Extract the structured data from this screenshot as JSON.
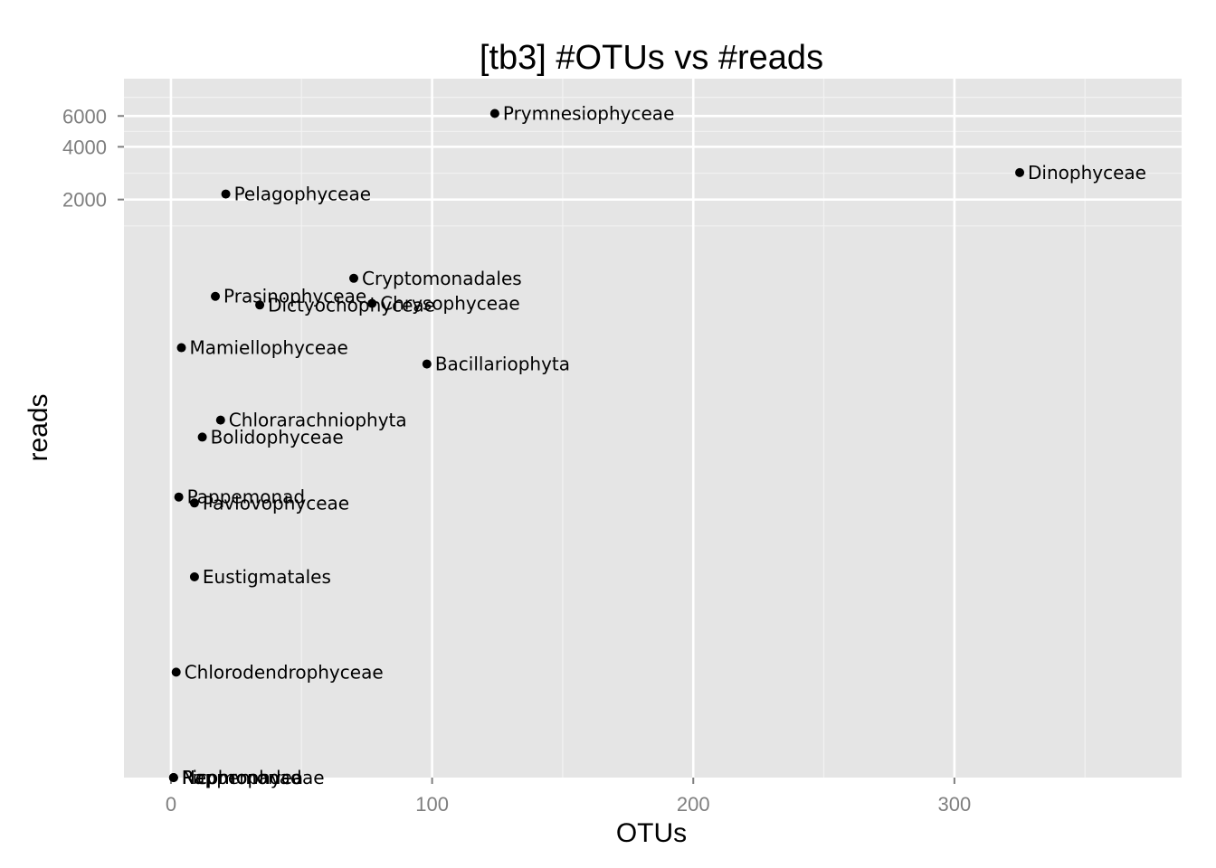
{
  "chart_data": {
    "type": "scatter",
    "title": "[tb3] #OTUs vs #reads",
    "xlabel": "OTUs",
    "ylabel": "reads",
    "xlim": [
      -18,
      387
    ],
    "x_ticks": [
      0,
      100,
      200,
      300
    ],
    "x_tick_labels": [
      "0",
      "100",
      "200",
      "300"
    ],
    "y_scale": "log",
    "ylim": [
      1,
      9800
    ],
    "y_ticks": [
      2000,
      4000,
      6000
    ],
    "y_tick_labels": [
      "2000",
      "4000",
      "6000"
    ],
    "grid": true,
    "legend": "none",
    "point_color": "#000000",
    "panel_color": "#e5e5e5",
    "points": [
      {
        "label": "Prymnesiophyceae",
        "x": 124,
        "y": 6200
      },
      {
        "label": "Dinophyceae",
        "x": 325,
        "y": 2850
      },
      {
        "label": "Pelagophyceae",
        "x": 21,
        "y": 2150
      },
      {
        "label": "Cryptomonadales",
        "x": 70,
        "y": 710
      },
      {
        "label": "Prasinophyceae",
        "x": 17,
        "y": 560
      },
      {
        "label": "Dictyochophyceae",
        "x": 34,
        "y": 500
      },
      {
        "label": "Chrysophyceae",
        "x": 77,
        "y": 510
      },
      {
        "label": "Mamiellophyceae",
        "x": 4,
        "y": 285
      },
      {
        "label": "Bacillariophyta",
        "x": 98,
        "y": 230
      },
      {
        "label": "Chlorarachniophyta",
        "x": 19,
        "y": 110
      },
      {
        "label": "Bolidophyceae",
        "x": 12,
        "y": 88
      },
      {
        "label": "Pappemonad",
        "x": 3,
        "y": 40
      },
      {
        "label": "Pavlovophyceae",
        "x": 9,
        "y": 37
      },
      {
        "label": "Eustigmatales",
        "x": 9,
        "y": 14
      },
      {
        "label": "Chlorodendrophyceae",
        "x": 2,
        "y": 4
      },
      {
        "label": "Rappemonad",
        "x": 1,
        "y": 1
      },
      {
        "label": "Nephrophyceae",
        "x": 1,
        "y": 1
      },
      {
        "label": "Picomonadea",
        "x": 1,
        "y": 1
      }
    ]
  }
}
